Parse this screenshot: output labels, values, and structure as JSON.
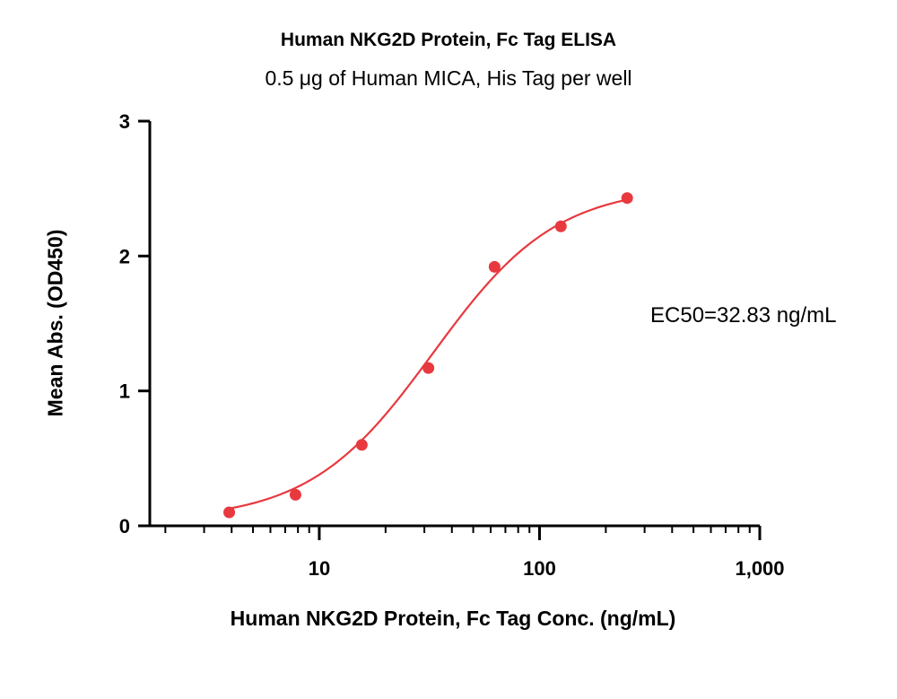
{
  "chart_data": {
    "type": "scatter",
    "title": "Human NKG2D Protein, Fc Tag ELISA",
    "subtitle": "0.5 μg of Human MICA, His Tag per well",
    "xlabel": "Human NKG2D Protein, Fc Tag Conc. (ng/mL)",
    "ylabel": "Mean Abs. (OD450)",
    "xscale": "log",
    "xlim": [
      1.7,
      1000
    ],
    "ylim": [
      0,
      3
    ],
    "x_ticks": [
      {
        "value": 10,
        "label": "10"
      },
      {
        "value": 100,
        "label": "100"
      },
      {
        "value": 1000,
        "label": "1,000"
      }
    ],
    "y_ticks": [
      {
        "value": 0,
        "label": "0"
      },
      {
        "value": 1,
        "label": "1"
      },
      {
        "value": 2,
        "label": "2"
      },
      {
        "value": 3,
        "label": "3"
      }
    ],
    "x": [
      3.9,
      7.8,
      15.6,
      31.3,
      62.5,
      125,
      250
    ],
    "y": [
      0.1,
      0.23,
      0.6,
      1.17,
      1.92,
      2.22,
      2.43
    ],
    "fit": {
      "model": "4PL",
      "bottom": 0.04,
      "top": 2.52,
      "ec50": 32.83,
      "hill": 1.55
    },
    "annotation": "EC50=32.83 ng/mL",
    "grid": false,
    "color": "#e8393f"
  }
}
